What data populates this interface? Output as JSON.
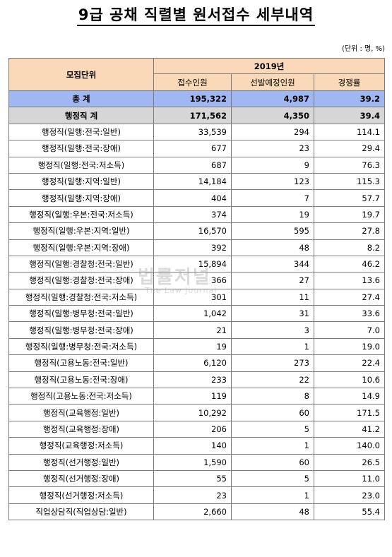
{
  "title": "9급 공채 직렬별 원서접수 세부내역",
  "unit": "(단위 : 명, %)",
  "header": {
    "group": "모집단위",
    "year": "2019년",
    "col_applicants": "접수인원",
    "col_planned": "선발예정인원",
    "col_ratio": "경쟁률"
  },
  "total": {
    "name": "총 계",
    "applicants": "195,322",
    "planned": "4,987",
    "ratio": "39.2"
  },
  "subtotal": {
    "name": "행정직 계",
    "applicants": "171,562",
    "planned": "4,350",
    "ratio": "39.4"
  },
  "rows": [
    {
      "name": "행정직(일행:전국:일반)",
      "applicants": "33,539",
      "planned": "294",
      "ratio": "114.1"
    },
    {
      "name": "행정직(일행:전국:장애)",
      "applicants": "677",
      "planned": "23",
      "ratio": "29.4"
    },
    {
      "name": "행정직(일행:전국:저소득)",
      "applicants": "687",
      "planned": "9",
      "ratio": "76.3"
    },
    {
      "name": "행정직(일행:지역:일반)",
      "applicants": "14,184",
      "planned": "123",
      "ratio": "115.3"
    },
    {
      "name": "행정직(일행:지역:장애)",
      "applicants": "404",
      "planned": "7",
      "ratio": "57.7"
    },
    {
      "name": "행정직(일행:우본:전국:저소득)",
      "applicants": "374",
      "planned": "19",
      "ratio": "19.7"
    },
    {
      "name": "행정직(일행:우본:지역:일반)",
      "applicants": "16,570",
      "planned": "595",
      "ratio": "27.8"
    },
    {
      "name": "행정직(일행:우본:지역:장애)",
      "applicants": "392",
      "planned": "48",
      "ratio": "8.2"
    },
    {
      "name": "행정직(일행:경찰청:전국:일반)",
      "applicants": "15,894",
      "planned": "344",
      "ratio": "46.2"
    },
    {
      "name": "행정직(일행:경찰청:전국:장애)",
      "applicants": "366",
      "planned": "27",
      "ratio": "13.6"
    },
    {
      "name": "행정직(일행:경찰청:전국:저소득)",
      "applicants": "301",
      "planned": "11",
      "ratio": "27.4"
    },
    {
      "name": "행정직(일행:병무청:전국:일반)",
      "applicants": "1,042",
      "planned": "31",
      "ratio": "33.6"
    },
    {
      "name": "행정직(일행:병무청:전국:장애)",
      "applicants": "21",
      "planned": "3",
      "ratio": "7.0"
    },
    {
      "name": "행정직(일행:병무청:전국:저소득)",
      "applicants": "19",
      "planned": "1",
      "ratio": "19.0"
    },
    {
      "name": "행정직(고용노동:전국:일반)",
      "applicants": "6,120",
      "planned": "273",
      "ratio": "22.4"
    },
    {
      "name": "행정직(고용노동:전국:장애)",
      "applicants": "233",
      "planned": "22",
      "ratio": "10.6"
    },
    {
      "name": "행정직(고용노동:전국:저소득)",
      "applicants": "119",
      "planned": "8",
      "ratio": "14.9"
    },
    {
      "name": "행정직(교육행정:일반)",
      "applicants": "10,292",
      "planned": "60",
      "ratio": "171.5"
    },
    {
      "name": "행정직(교육행정:장애)",
      "applicants": "206",
      "planned": "5",
      "ratio": "41.2"
    },
    {
      "name": "행정직(교육행정:저소득)",
      "applicants": "140",
      "planned": "1",
      "ratio": "140.0"
    },
    {
      "name": "행정직(선거행정:일반)",
      "applicants": "1,590",
      "planned": "60",
      "ratio": "26.5"
    },
    {
      "name": "행정직(선거행정:장애)",
      "applicants": "55",
      "planned": "5",
      "ratio": "11.0"
    },
    {
      "name": "행정직(선거행정:저소득)",
      "applicants": "23",
      "planned": "1",
      "ratio": "23.0"
    },
    {
      "name": "직업상담직(직업상담:일반)",
      "applicants": "2,660",
      "planned": "48",
      "ratio": "55.4"
    }
  ],
  "watermark": {
    "text": "법률저널",
    "sub": "The Law Journal"
  }
}
